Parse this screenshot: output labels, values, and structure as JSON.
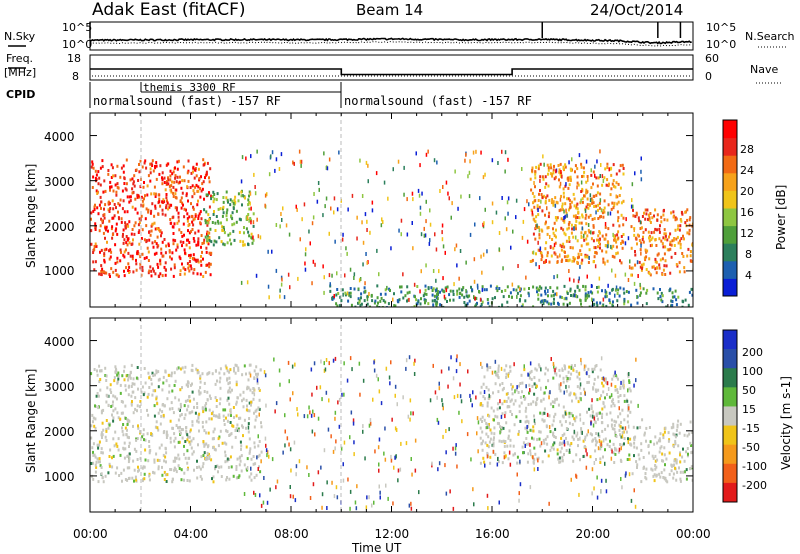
{
  "header": {
    "title": "Adak East (fitACF)",
    "beam": "Beam 14",
    "date": "24/Oct/2014"
  },
  "top_panels": {
    "nsky_label": "N.Sky",
    "nsearch_label": "N.Search",
    "freq_label": "Freq.",
    "freq_unit": "[MHz]",
    "nave_label": "Nave",
    "cpid_label": "CPID",
    "noise_ticks_left": [
      "10^5",
      "10^0"
    ],
    "noise_ticks_right": [
      "10^5",
      "10^0"
    ],
    "freq_ticks": [
      "18",
      "8"
    ],
    "nave_ticks": [
      "60",
      "0"
    ],
    "cpid_segments": [
      {
        "start_h": 0,
        "end_h": 10,
        "label": "normalsound (fast) -157 RF"
      },
      {
        "start_h": 10,
        "end_h": 24,
        "label": "normalsound (fast) -157 RF"
      }
    ],
    "cpid_insert": {
      "start_h": 2,
      "label": "themis 3300 RF"
    }
  },
  "xaxis": {
    "label": "Time UT",
    "ticks": [
      "00:00",
      "04:00",
      "08:00",
      "12:00",
      "16:00",
      "20:00",
      "00:00"
    ]
  },
  "power_panel": {
    "ylabel": "Slant Range [km]",
    "yticks": [
      "1000",
      "2000",
      "3000",
      "4000"
    ],
    "colorbar_label": "Power [dB]",
    "colorbar_ticks": [
      "4",
      "8",
      "12",
      "16",
      "20",
      "24",
      "28"
    ],
    "colors": [
      "#0a1fd6",
      "#1d5fb0",
      "#2c7f5c",
      "#4f9f3a",
      "#8ec641",
      "#f0c419",
      "#f7a21a",
      "#f26a14",
      "#e8261b",
      "#ff0000"
    ]
  },
  "velocity_panel": {
    "ylabel": "Slant Range [km]",
    "yticks": [
      "1000",
      "2000",
      "3000",
      "4000"
    ],
    "colorbar_label": "Velocity [m s-1]",
    "colorbar_ticks": [
      "200",
      "100",
      "50",
      "15",
      "-15",
      "-50",
      "-100",
      "-200"
    ],
    "colors": [
      "#1a2ec8",
      "#2a4fa8",
      "#2b7b4b",
      "#5fb83a",
      "#c8c8c0",
      "#f0c419",
      "#f59a1c",
      "#f2601a",
      "#e21b1b"
    ]
  },
  "chart_data": {
    "type": "heatmap",
    "x": {
      "unit": "hours UT",
      "range": [
        0,
        24
      ]
    },
    "y": {
      "unit": "km",
      "range": [
        200,
        4500
      ]
    },
    "noise_search_log10": [
      [
        0,
        1.0
      ],
      [
        3,
        1.1
      ],
      [
        6,
        1.15
      ],
      [
        9,
        1.1
      ],
      [
        12,
        1.3
      ],
      [
        15,
        1.1
      ],
      [
        18,
        1.2
      ],
      [
        21,
        0.9
      ],
      [
        22.5,
        0.4
      ],
      [
        24,
        0.7
      ]
    ],
    "frequency_mhz": [
      [
        0,
        13.0
      ],
      [
        10,
        13.0
      ],
      [
        10,
        10.5
      ],
      [
        16.8,
        10.5
      ],
      [
        16.8,
        13.0
      ],
      [
        24,
        13.0
      ]
    ],
    "power_echo_regions": [
      {
        "start_h": 0.0,
        "end_h": 4.8,
        "range_km": [
          900,
          3500
        ],
        "power_db": 28
      },
      {
        "start_h": 4.5,
        "end_h": 6.5,
        "range_km": [
          1600,
          2800
        ],
        "power_db": 12
      },
      {
        "start_h": 17.5,
        "end_h": 21.2,
        "range_km": [
          1200,
          3400
        ],
        "power_db": 22
      },
      {
        "start_h": 21.5,
        "end_h": 24.0,
        "range_km": [
          900,
          2400
        ],
        "power_db": 24
      },
      {
        "start_h": 9.5,
        "end_h": 24.0,
        "range_km": [
          200,
          700
        ],
        "power_db": 8
      }
    ],
    "velocity_echo_regions": [
      {
        "start_h": 0.0,
        "end_h": 6.8,
        "range_km": [
          900,
          3500
        ],
        "velocity_ms": 0
      },
      {
        "start_h": 15.5,
        "end_h": 21.5,
        "range_km": [
          1300,
          3500
        ],
        "velocity_ms": 5
      },
      {
        "start_h": 21.5,
        "end_h": 24.0,
        "range_km": [
          900,
          2300
        ],
        "velocity_ms": 0
      }
    ]
  }
}
